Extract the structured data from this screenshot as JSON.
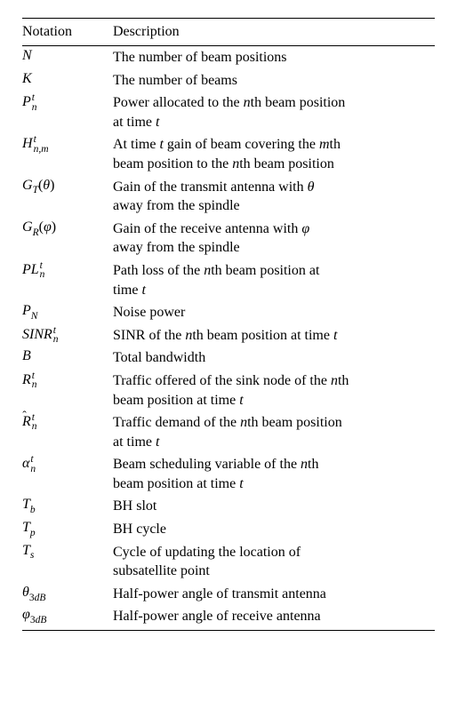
{
  "table": {
    "header": {
      "notation": "Notation",
      "description": "Description"
    },
    "colors": {
      "background": "#ffffff",
      "text": "#000000",
      "rule": "#000000"
    },
    "typography": {
      "font_family": "Times New Roman",
      "base_fontsize_pt": 12,
      "subscript_scale": 0.72
    },
    "rows": [
      {
        "notation_html": "<span class=\"math\">N</span>",
        "description_lines": [
          "The number of beam positions"
        ]
      },
      {
        "notation_html": "<span class=\"math\">K</span>",
        "description_lines": [
          "The number of beams"
        ]
      },
      {
        "notation_html": "<span class=\"math\">P</span><span class=\"supsub\"><span class=\"top math\">t</span><span class=\"bot math\">n</span></span>",
        "description_lines": [
          "Power allocated to the <span class=\"math\">n</span>th beam position",
          "at time <span class=\"math\">t</span>"
        ]
      },
      {
        "notation_html": "<span class=\"math\">H</span><span class=\"supsub\"><span class=\"top math\">t</span><span class=\"bot math\">n,m</span></span>",
        "description_lines": [
          "At time <span class=\"math\">t</span> gain of beam covering the <span class=\"math\">m</span>th",
          "beam position to the <span class=\"math\">n</span>th beam position"
        ]
      },
      {
        "notation_html": "<span class=\"math\">G<span class=\"sub\">T</span></span>(<span class=\"math\">θ</span>)",
        "description_lines": [
          "Gain of the transmit antenna with <span class=\"math\">θ</span>",
          "away from the spindle"
        ]
      },
      {
        "notation_html": "<span class=\"math\">G<span class=\"sub\">R</span></span>(<span class=\"math\">φ</span>)",
        "description_lines": [
          "Gain of the receive antenna with <span class=\"math\">φ</span>",
          "away from the spindle"
        ]
      },
      {
        "notation_html": "<span class=\"math\">PL</span><span class=\"supsub\"><span class=\"top math\">t</span><span class=\"bot math\">n</span></span>",
        "description_lines": [
          "Path loss of the <span class=\"math\">n</span>th beam position at",
          "time <span class=\"math\">t</span>"
        ]
      },
      {
        "notation_html": "<span class=\"math\">P<span class=\"sub\">N</span></span>",
        "description_lines": [
          "Noise power"
        ]
      },
      {
        "notation_html": "<span class=\"math\">SINR</span><span class=\"supsub\"><span class=\"top math\">t</span><span class=\"bot math\">n</span></span>",
        "description_lines": [
          "SINR of the <span class=\"math\">n</span>th beam position at time <span class=\"math\">t</span>"
        ]
      },
      {
        "notation_html": "<span class=\"math\">B</span>",
        "description_lines": [
          "Total bandwidth"
        ]
      },
      {
        "notation_html": "<span class=\"math\">R</span><span class=\"supsub\"><span class=\"top math\">t</span><span class=\"bot math\">n</span></span>",
        "description_lines": [
          "Traffic offered of the sink node of the <span class=\"math\">n</span>th",
          "beam position at time <span class=\"math\">t</span>"
        ]
      },
      {
        "notation_html": "<span class=\"hat-wrapper\"><span class=\"hat\">ˆ</span><span class=\"math\">R</span></span><span class=\"supsub\"><span class=\"top math\">t</span><span class=\"bot math\">n</span></span>",
        "description_lines": [
          "Traffic demand of the <span class=\"math\">n</span>th beam position",
          "at time <span class=\"math\">t</span>"
        ]
      },
      {
        "notation_html": "<span class=\"math\">α</span><span class=\"supsub\"><span class=\"top math\">t</span><span class=\"bot math\">n</span></span>",
        "description_lines": [
          "Beam scheduling variable of the <span class=\"math\">n</span>th",
          "beam position at time <span class=\"math\">t</span>"
        ]
      },
      {
        "notation_html": "<span class=\"math\">T<span class=\"sub\">b</span></span>",
        "description_lines": [
          "BH slot"
        ]
      },
      {
        "notation_html": "<span class=\"math\">T<span class=\"sub\">p</span></span>",
        "description_lines": [
          "BH cycle"
        ]
      },
      {
        "notation_html": "<span class=\"math\">T<span class=\"sub\">s</span></span>",
        "description_lines": [
          "Cycle of updating the location of",
          "subsatellite point"
        ]
      },
      {
        "notation_html": "<span class=\"math\">θ</span><span class=\"sub\">3<span class=\"math\">dB</span></span>",
        "description_lines": [
          "Half-power angle of transmit antenna"
        ]
      },
      {
        "notation_html": "<span class=\"math\">φ</span><span class=\"sub\">3<span class=\"math\">dB</span></span>",
        "description_lines": [
          "Half-power angle of receive antenna"
        ]
      }
    ]
  }
}
